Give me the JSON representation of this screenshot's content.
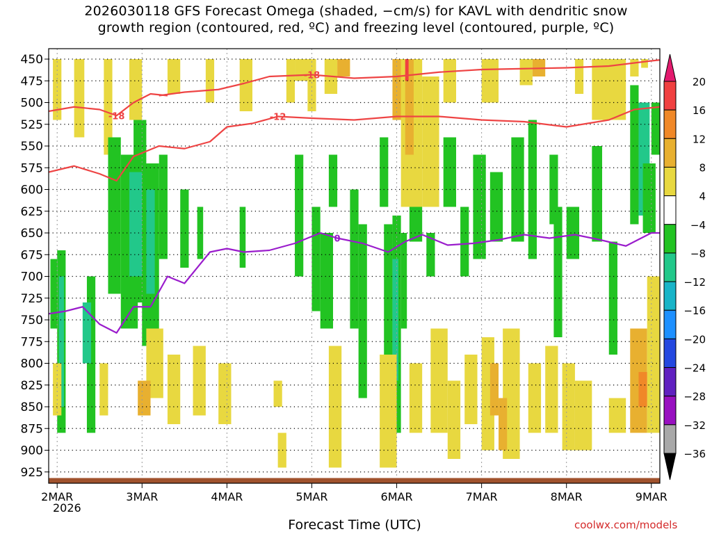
{
  "title_line1": "2026030118 GFS Forecast Omega (shaded, −cm/s) for KAVL with dendritic snow",
  "title_line2": "growth region (contoured, red, ºC) and freezing level (contoured, purple, ºC)",
  "credit": "coolwx.com/models",
  "chart_data": {
    "type": "heatmap",
    "title": "2026030118 GFS Forecast Omega (shaded, −cm/s) for KAVL with dendritic snow growth region (contoured, red, ºC) and freezing level (contoured, purple, ºC)",
    "xlabel": "Forecast Time (UTC)",
    "ylabel": "",
    "x_year": "2026",
    "x_range_days_from_2MAR": [
      -0.1,
      7.1
    ],
    "x_ticks": [
      "2MAR",
      "3MAR",
      "4MAR",
      "5MAR",
      "6MAR",
      "7MAR",
      "8MAR",
      "9MAR"
    ],
    "y_ticks": [
      450,
      475,
      500,
      525,
      550,
      575,
      600,
      625,
      650,
      675,
      700,
      725,
      750,
      775,
      800,
      825,
      850,
      875,
      900,
      925
    ],
    "y_range_hPa": [
      438,
      938
    ],
    "grid": true,
    "colorbar": {
      "levels": [
        "20",
        "16",
        "12",
        "8",
        "4",
        "−4",
        "−8",
        "−12",
        "−16",
        "−20",
        "−24",
        "−28",
        "−32",
        "−36"
      ],
      "colors": [
        "#e31a6e",
        "#f04040",
        "#f08828",
        "#e8b030",
        "#e8d840",
        "#ffffff",
        "#22c322",
        "#22c88a",
        "#18b4c8",
        "#1e90ff",
        "#2448e0",
        "#6020c0",
        "#9810c0",
        "#a8a8a8",
        "#000000"
      ]
    },
    "contours": [
      {
        "label": "-18",
        "color": "#ee4444",
        "x": [
          -0.1,
          0.2,
          0.5,
          0.8,
          1.0,
          1.2,
          1.5,
          1.9,
          2.2,
          2.5,
          3.0,
          3.5,
          4.0,
          4.5,
          5.0,
          5.5,
          6.0,
          6.5,
          7.0,
          7.1
        ],
        "y": [
          -999,
          -999,
          -999,
          -999,
          -999,
          492,
          488,
          485,
          478,
          470,
          468,
          472,
          470,
          465,
          462,
          461,
          460,
          458,
          452,
          451
        ]
      },
      {
        "label": "-18",
        "color": "#ee4444",
        "x": [
          -0.1,
          0.2,
          0.5,
          0.7,
          0.9,
          1.1,
          1.3
        ],
        "y": [
          510,
          505,
          508,
          515,
          500,
          490,
          492
        ]
      },
      {
        "label": "-12",
        "color": "#ee4444",
        "x": [
          -0.1,
          0.2,
          0.5,
          0.7,
          0.9,
          1.2,
          1.5,
          1.8,
          2.0,
          2.3,
          2.6,
          3.0,
          3.5,
          4.0,
          4.5,
          5.0,
          5.5,
          6.0,
          6.5,
          6.8,
          7.1
        ],
        "y": [
          580,
          573,
          582,
          590,
          562,
          550,
          553,
          545,
          528,
          524,
          516,
          518,
          520,
          516,
          516,
          520,
          522,
          528,
          520,
          508,
          505
        ]
      },
      {
        "label": "0",
        "color": "#9a1ccc",
        "x": [
          -0.1,
          0.1,
          0.3,
          0.5,
          0.7,
          0.9,
          1.1,
          1.3,
          1.5,
          1.8,
          2.0,
          2.2,
          2.5,
          2.8,
          3.1,
          3.3,
          3.6,
          3.9,
          4.1,
          4.3,
          4.6,
          4.9,
          5.2,
          5.5,
          5.8,
          6.1,
          6.4,
          6.7,
          7.0,
          7.1
        ],
        "y": [
          743,
          740,
          735,
          755,
          765,
          735,
          735,
          700,
          708,
          672,
          668,
          672,
          670,
          662,
          650,
          656,
          662,
          672,
          660,
          652,
          664,
          662,
          658,
          652,
          656,
          652,
          658,
          665,
          650,
          650
        ]
      }
    ],
    "surface": {
      "color": "#a0522d",
      "pressure_hPa": 932
    }
  }
}
